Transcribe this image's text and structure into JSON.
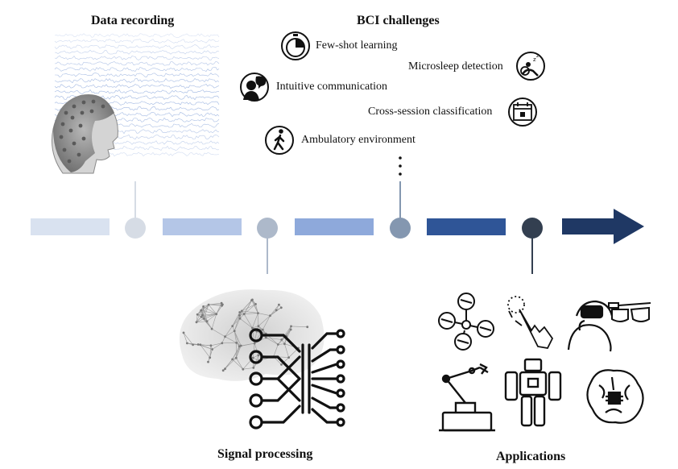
{
  "sections": {
    "data_recording": "Data recording",
    "bci_challenges": "BCI challenges",
    "signal_processing": "Signal processing",
    "applications": "Applications"
  },
  "challenges": [
    {
      "label": "Few-shot learning",
      "icon": "stopwatch-icon"
    },
    {
      "label": "Microsleep detection",
      "icon": "drowsy-driver-icon"
    },
    {
      "label": "Intuitive communication",
      "icon": "speaking-head-icon"
    },
    {
      "label": "Cross-session classification",
      "icon": "calendar-icon"
    },
    {
      "label": "Ambulatory environment",
      "icon": "walking-person-icon"
    }
  ],
  "colors": {
    "seg1": "#d9e2f0",
    "seg2": "#b4c6e7",
    "seg3": "#8ea9db",
    "seg4": "#2f5597",
    "arrow": "#1f3864",
    "dot1": "#d6dce5",
    "dot2": "#adb9ca",
    "dot3": "#8497b0",
    "dot4": "#333f50",
    "eeg": "#8faadc"
  },
  "application_icons": [
    "drone-icon",
    "touch-gesture-icon",
    "vr-headset-icon",
    "smart-glasses-icon",
    "robotic-arm-icon",
    "humanoid-robot-icon",
    "brain-chip-icon"
  ]
}
